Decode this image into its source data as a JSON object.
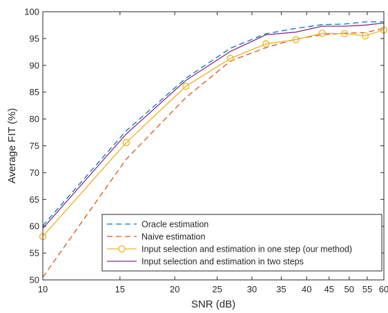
{
  "chart_data": {
    "type": "line",
    "title": "",
    "xlabel": "SNR (dB)",
    "ylabel": "Average FIT (%)",
    "xscale": "log",
    "xlim": [
      10,
      60
    ],
    "ylim": [
      50,
      100
    ],
    "xticks": [
      10,
      15,
      20,
      25,
      30,
      35,
      40,
      45,
      50,
      55,
      60
    ],
    "yticks": [
      50,
      55,
      60,
      65,
      70,
      75,
      80,
      85,
      90,
      95,
      100
    ],
    "grid": false,
    "legend_position": "bottom-right",
    "x": [
      10,
      15.5,
      21.2,
      26.8,
      32.3,
      37.8,
      43.4,
      48.8,
      54.4,
      60
    ],
    "series": [
      {
        "name": "Oracle estimation",
        "style": "dashed",
        "color": "#0072BD",
        "values": [
          60.1,
          77.8,
          87.6,
          93.2,
          95.9,
          96.9,
          97.6,
          97.7,
          98.1,
          98.1
        ]
      },
      {
        "name": "Naive estimation",
        "style": "dashed",
        "color": "#D95319",
        "values": [
          50.5,
          72.5,
          84.0,
          90.8,
          93.3,
          94.9,
          95.7,
          96.0,
          96.1,
          96.9
        ]
      },
      {
        "name": "Input selection and estimation in one step (our method)",
        "style": "solid-circle-markers",
        "color": "#EDB120",
        "values": [
          58.1,
          75.6,
          86.1,
          91.3,
          94.0,
          94.8,
          96.0,
          95.9,
          95.5,
          96.6
        ]
      },
      {
        "name": "Input selection and estimation in two steps",
        "style": "solid",
        "color": "#7E2F8E",
        "values": [
          59.6,
          77.2,
          87.2,
          92.6,
          95.7,
          96.2,
          97.3,
          97.3,
          97.5,
          97.9
        ]
      }
    ]
  }
}
